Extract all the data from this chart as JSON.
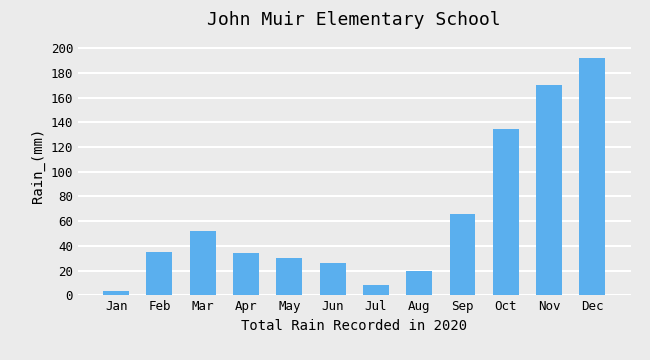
{
  "title": "John Muir Elementary School",
  "xlabel": "Total Rain Recorded in 2020",
  "ylabel": "Rain_(mm)",
  "months": [
    "Jan",
    "Feb",
    "Mar",
    "Apr",
    "May",
    "Jun",
    "Jul",
    "Aug",
    "Sep",
    "Oct",
    "Nov",
    "Dec"
  ],
  "values": [
    3,
    35,
    52,
    34,
    30,
    26,
    8,
    20,
    66,
    135,
    170,
    192
  ],
  "bar_color": "#5aafee",
  "ylim": [
    0,
    210
  ],
  "yticks": [
    0,
    20,
    40,
    60,
    80,
    100,
    120,
    140,
    160,
    180,
    200
  ],
  "bg_color": "#ebebeb",
  "plot_bg_color": "#ebebeb",
  "title_fontsize": 13,
  "label_fontsize": 10,
  "tick_fontsize": 9,
  "grid_color": "#ffffff",
  "grid_linewidth": 1.5
}
